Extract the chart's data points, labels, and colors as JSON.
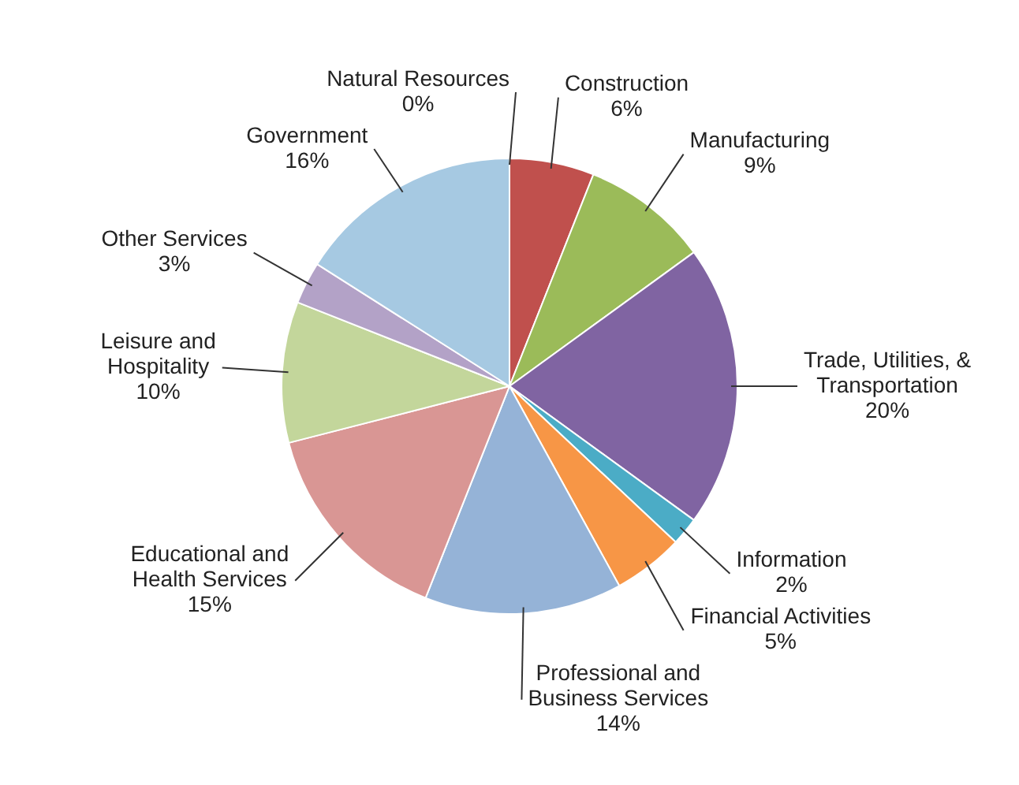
{
  "chart_data": {
    "type": "pie",
    "categories": [
      "Natural Resources",
      "Construction",
      "Manufacturing",
      "Trade, Utilities, & Transportation",
      "Information",
      "Financial Activities",
      "Professional and Business Services",
      "Educational and Health Services",
      "Leisure and Hospitality",
      "Other Services",
      "Government"
    ],
    "values": [
      0,
      6,
      9,
      20,
      2,
      5,
      14,
      15,
      10,
      3,
      16
    ],
    "value_labels": [
      "0%",
      "6%",
      "9%",
      "20%",
      "2%",
      "5%",
      "14%",
      "15%",
      "10%",
      "3%",
      "16%"
    ],
    "colors": [
      "#8db4e2",
      "#c0504d",
      "#9bbb59",
      "#8064a2",
      "#4bacc6",
      "#f79646",
      "#95b3d7",
      "#d99694",
      "#c3d69b",
      "#b3a2c7",
      "#a6c9e2"
    ],
    "legend": false
  }
}
